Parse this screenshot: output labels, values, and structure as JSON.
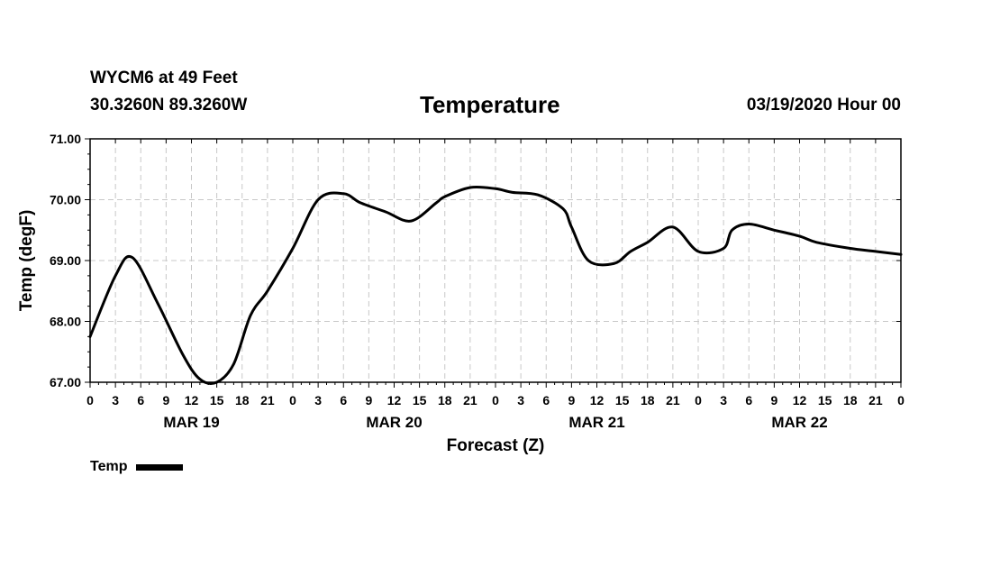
{
  "header": {
    "station": "WYCM6 at 49 Feet",
    "coords": "30.3260N 89.3260W",
    "title": "Temperature",
    "runtime": "03/19/2020 Hour 00"
  },
  "chart_data": {
    "type": "line",
    "title": "Temperature",
    "xlabel": "Forecast (Z)",
    "ylabel": "Temp (degF)",
    "ylim": [
      67,
      71
    ],
    "xlim": [
      0,
      96
    ],
    "grid": true,
    "legend_position": "bottom-left",
    "y_ticks": [
      "67.00",
      "68.00",
      "69.00",
      "70.00",
      "71.00"
    ],
    "x_tick_labels": [
      "0",
      "3",
      "6",
      "9",
      "12",
      "15",
      "18",
      "21",
      "0",
      "3",
      "6",
      "9",
      "12",
      "15",
      "18",
      "21",
      "0",
      "3",
      "6",
      "9",
      "12",
      "15",
      "18",
      "21",
      "0",
      "3",
      "6",
      "9",
      "12",
      "15",
      "18",
      "21",
      "0"
    ],
    "day_labels": [
      {
        "label": "MAR 19",
        "hour": 12
      },
      {
        "label": "MAR 20",
        "hour": 36
      },
      {
        "label": "MAR 21",
        "hour": 60
      },
      {
        "label": "MAR 22",
        "hour": 84
      }
    ],
    "series": [
      {
        "name": "Temp",
        "color": "#000000",
        "x": [
          0,
          3,
          5,
          8,
          11,
          13,
          15,
          17,
          19,
          21,
          24,
          27,
          30,
          32,
          35,
          38,
          41,
          42,
          45,
          48,
          50,
          53,
          56,
          57,
          59,
          62,
          64,
          66,
          69,
          72,
          75,
          76,
          78,
          81,
          84,
          86,
          90,
          93,
          96
        ],
        "values": [
          67.75,
          68.75,
          69.05,
          68.3,
          67.45,
          67.05,
          67.0,
          67.3,
          68.1,
          68.5,
          69.2,
          70.0,
          70.1,
          69.95,
          69.8,
          69.65,
          69.95,
          70.05,
          70.2,
          70.18,
          70.12,
          70.08,
          69.85,
          69.55,
          69.0,
          68.95,
          69.15,
          69.3,
          69.55,
          69.15,
          69.2,
          69.5,
          69.6,
          69.5,
          69.4,
          69.3,
          69.2,
          69.15,
          69.1
        ],
        "line_width": 3
      }
    ]
  }
}
